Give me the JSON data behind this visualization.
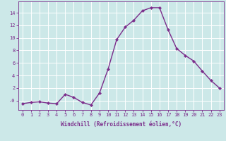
{
  "x": [
    0,
    1,
    2,
    3,
    4,
    5,
    6,
    7,
    8,
    9,
    10,
    11,
    12,
    13,
    14,
    15,
    16,
    17,
    18,
    19,
    20,
    21,
    22,
    23
  ],
  "y": [
    -0.5,
    -0.3,
    -0.2,
    -0.4,
    -0.5,
    1.0,
    0.5,
    -0.3,
    -0.7,
    1.2,
    5.0,
    9.7,
    11.7,
    12.8,
    14.3,
    14.8,
    14.8,
    11.3,
    8.3,
    7.2,
    6.3,
    4.7,
    3.2,
    2.0
  ],
  "line_color": "#7B2D8B",
  "marker": "D",
  "marker_size": 2.2,
  "line_width": 1.0,
  "bg_color": "#cce8e8",
  "grid_color": "#ffffff",
  "xlabel": "Windchill (Refroidissement éolien,°C)",
  "xlabel_fontsize": 5.5,
  "tick_fontsize": 5.0,
  "yticks": [
    0,
    2,
    4,
    6,
    8,
    10,
    12,
    14
  ],
  "ytick_labels": [
    "-0",
    "2",
    "4",
    "6",
    "8",
    "10",
    "12",
    "14"
  ],
  "ylim": [
    -1.5,
    15.8
  ],
  "xlim": [
    -0.5,
    23.5
  ]
}
